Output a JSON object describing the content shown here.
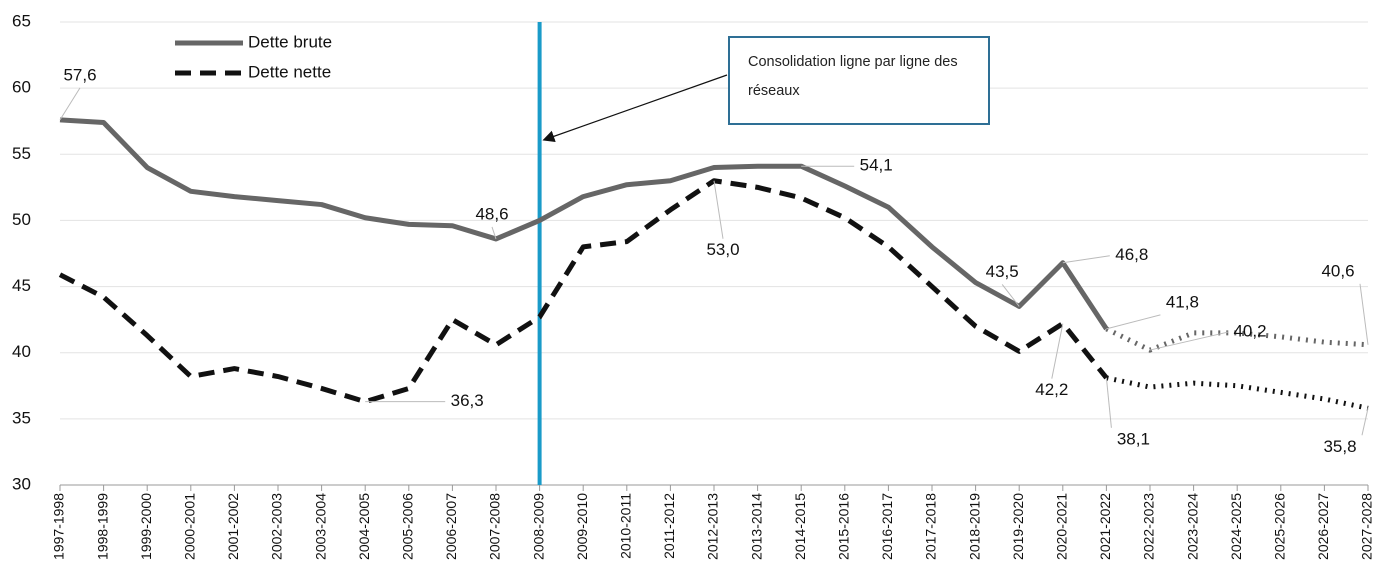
{
  "chart_data": {
    "type": "line",
    "categories": [
      "1997-1998",
      "1998-1999",
      "1999-2000",
      "2000-2001",
      "2001-2002",
      "2002-2003",
      "2003-2004",
      "2004-2005",
      "2005-2006",
      "2006-2007",
      "2007-2008",
      "2008-2009",
      "2009-2010",
      "2010-2011",
      "2011-2012",
      "2012-2013",
      "2013-2014",
      "2014-2015",
      "2015-2016",
      "2016-2017",
      "2017-2018",
      "2018-2019",
      "2019-2020",
      "2020-2021",
      "2021-2022",
      "2022-2023",
      "2023-2024",
      "2024-2025",
      "2025-2026",
      "2026-2027",
      "2027-2028"
    ],
    "series": [
      {
        "name": "Dette brute",
        "color": "#666666",
        "dash": "solid",
        "values": [
          57.6,
          57.4,
          54.0,
          52.2,
          51.8,
          51.5,
          51.2,
          50.2,
          49.7,
          49.6,
          48.6,
          50.0,
          51.8,
          52.7,
          53.0,
          54.0,
          54.1,
          54.1,
          52.6,
          51.0,
          48.0,
          45.3,
          43.5,
          46.8,
          41.8,
          40.2,
          41.5,
          41.5,
          41.2,
          40.8,
          40.6
        ],
        "value_labels": [
          "57,6",
          null,
          null,
          null,
          null,
          null,
          null,
          null,
          null,
          null,
          "48,6",
          null,
          null,
          null,
          null,
          null,
          null,
          "54,1",
          null,
          null,
          null,
          null,
          "43,5",
          "46,8",
          "41,8",
          "40,2",
          null,
          null,
          null,
          null,
          "40,6"
        ]
      },
      {
        "name": "Dette nette",
        "color": "#111111",
        "dash": "dashed",
        "values": [
          45.9,
          44.2,
          41.3,
          38.2,
          38.8,
          38.2,
          37.3,
          36.3,
          37.3,
          42.5,
          40.6,
          42.7,
          48.0,
          48.4,
          50.8,
          53.0,
          52.5,
          51.7,
          50.2,
          48.0,
          45.0,
          42.0,
          40.1,
          42.2,
          38.1,
          37.4,
          37.7,
          37.5,
          37.0,
          36.5,
          35.8
        ],
        "value_labels": [
          null,
          null,
          null,
          null,
          null,
          null,
          null,
          "36,3",
          null,
          null,
          null,
          null,
          null,
          null,
          null,
          "53,0",
          null,
          null,
          null,
          null,
          null,
          null,
          null,
          "42,2",
          "38,1",
          null,
          null,
          null,
          null,
          null,
          "35,8"
        ]
      }
    ],
    "forecast_from": "2021-2022",
    "ylim": [
      30,
      65
    ],
    "yticks": [
      30,
      35,
      40,
      45,
      50,
      55,
      60,
      65
    ],
    "grid": true,
    "annotation": {
      "text": "Consolidation ligne par ligne des réseaux",
      "at": "2008-2009",
      "color": "#1a9bc9"
    }
  }
}
